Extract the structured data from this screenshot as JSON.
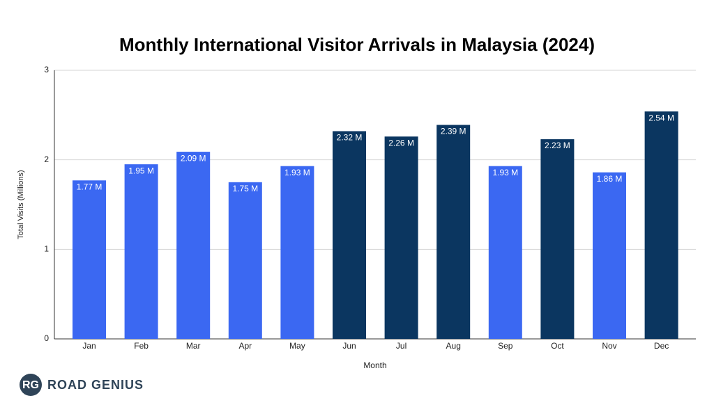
{
  "chart_data": {
    "type": "bar",
    "title": "Monthly International Visitor Arrivals in Malaysia (2024)",
    "x_label": "Month",
    "y_label": "Total Visits (Millions)",
    "categories": [
      "Jan",
      "Feb",
      "Mar",
      "Apr",
      "May",
      "Jun",
      "Jul",
      "Aug",
      "Sep",
      "Oct",
      "Nov",
      "Dec"
    ],
    "values": [
      1.77,
      1.95,
      2.09,
      1.75,
      1.93,
      2.32,
      2.26,
      2.39,
      1.93,
      2.23,
      1.86,
      2.54
    ],
    "value_labels": [
      "1.77 M",
      "1.95 M",
      "2.09 M",
      "1.75 M",
      "1.93 M",
      "2.32 M",
      "2.26 M",
      "2.39 M",
      "1.93 M",
      "2.23 M",
      "1.86 M",
      "2.54 M"
    ],
    "colors": [
      "#3b68f2",
      "#3b68f2",
      "#3b68f2",
      "#3b68f2",
      "#3b68f2",
      "#0b3660",
      "#0b3660",
      "#0b3660",
      "#3b68f2",
      "#0b3660",
      "#3b68f2",
      "#0b3660"
    ],
    "ylim": [
      0,
      3
    ],
    "yticks": [
      0,
      1,
      2,
      3
    ],
    "grid": true
  },
  "logo": {
    "mark": "RG",
    "name": "ROAD GENIUS"
  }
}
